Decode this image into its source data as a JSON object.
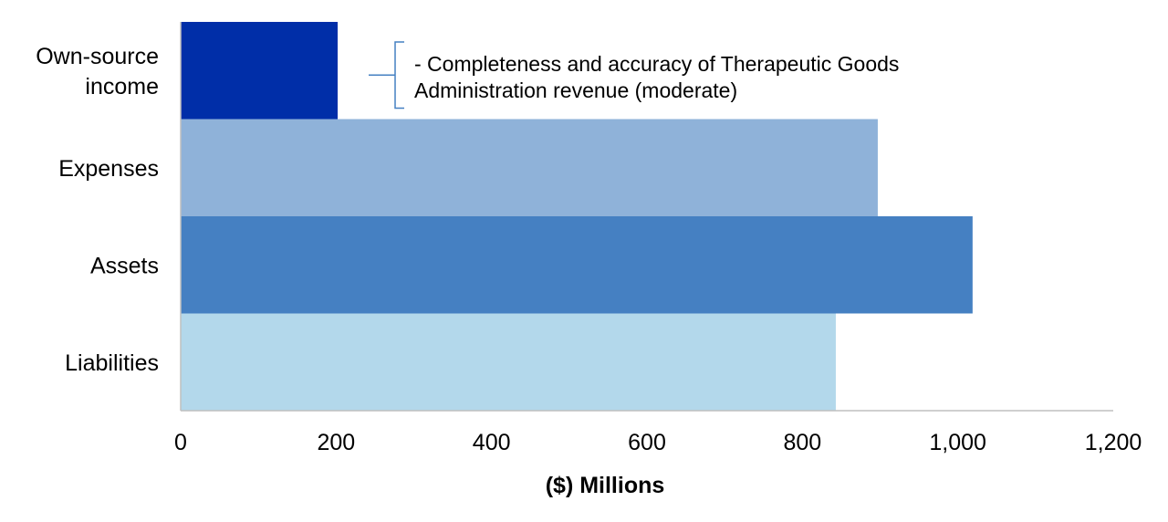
{
  "chart_data": {
    "type": "bar",
    "orientation": "horizontal",
    "categories": [
      "Own-source income",
      "Expenses",
      "Assets",
      "Liabilities"
    ],
    "category_label_lines": [
      [
        "Own-source",
        "income"
      ],
      [
        "Expenses"
      ],
      [
        "Assets"
      ],
      [
        "Liabilities"
      ]
    ],
    "values": [
      202,
      897,
      1019,
      843
    ],
    "colors": [
      "#002EA8",
      "#8FB2D9",
      "#4580C2",
      "#B3D8EB"
    ],
    "xlabel": "($) Millions",
    "xlim": [
      0,
      1200
    ],
    "xticks": [
      0,
      200,
      400,
      600,
      800,
      1000,
      1200
    ],
    "xtick_labels": [
      "0",
      "200",
      "400",
      "600",
      "800",
      "1,000",
      "1,200"
    ],
    "grid": false,
    "annotations": [
      {
        "category": "Own-source income",
        "lines": [
          "- Completeness and accuracy of Therapeutic Goods",
          "Administration revenue (moderate)"
        ],
        "bracket_color": "#4580C2"
      }
    ]
  }
}
